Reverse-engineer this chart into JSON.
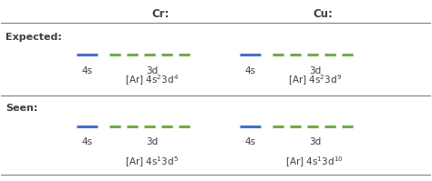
{
  "title_cr": "Cr:",
  "title_cu": "Cu:",
  "label_expected": "Expected:",
  "label_seen": "Seen:",
  "label_4s": "4s",
  "label_3d": "3d",
  "formula_cr_expected": "[Ar] 4s",
  "formula_cr_expected_sup1": "2",
  "formula_cr_expected_mid": "3d",
  "formula_cr_expected_sup2": "4",
  "formula_cu_expected": "[Ar] 4s",
  "formula_cu_expected_sup1": "2",
  "formula_cu_expected_mid": "3d",
  "formula_cu_expected_sup2": "9",
  "formula_cr_seen": "[Ar] 4s",
  "formula_cr_seen_sup1": "1",
  "formula_cr_seen_mid": "3d",
  "formula_cr_seen_sup2": "5",
  "formula_cu_seen": "[Ar] 4s",
  "formula_cu_seen_sup1": "1",
  "formula_cu_seen_mid": "3d",
  "formula_cu_seen_sup2": "10",
  "blue_color": "#4472C4",
  "green_color": "#70AD47",
  "text_color": "#404040",
  "line_color": "#808080",
  "bg_color": "#FFFFFF",
  "figsize": [
    4.74,
    1.99
  ],
  "dpi": 100
}
